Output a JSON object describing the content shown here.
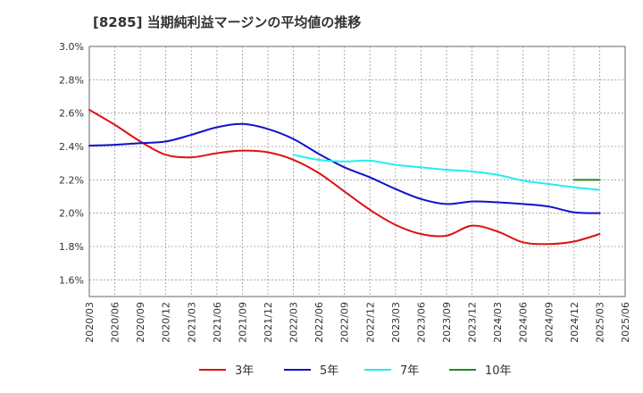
{
  "chart_data": {
    "type": "line",
    "title": "[8285]  当期純利益マージンの平均値の推移",
    "xlabel": "",
    "ylabel": "",
    "ylim": [
      1.5,
      3.0
    ],
    "y_ticks": [
      "1.6%",
      "1.8%",
      "2.0%",
      "2.2%",
      "2.4%",
      "2.6%",
      "2.8%",
      "3.0%"
    ],
    "y_tick_values": [
      1.6,
      1.8,
      2.0,
      2.2,
      2.4,
      2.6,
      2.8,
      3.0
    ],
    "x_ticks": [
      "2020/03",
      "2020/06",
      "2020/09",
      "2020/12",
      "2021/03",
      "2021/06",
      "2021/09",
      "2021/12",
      "2022/03",
      "2022/06",
      "2022/09",
      "2022/12",
      "2023/03",
      "2023/06",
      "2023/09",
      "2023/12",
      "2024/03",
      "2024/06",
      "2024/09",
      "2024/12",
      "2025/03",
      "2025/06"
    ],
    "grid": true,
    "legend_position": "bottom",
    "series": [
      {
        "name": "3年",
        "color": "#dd1111",
        "x": [
          "2020/03",
          "2020/06",
          "2020/09",
          "2020/12",
          "2021/03",
          "2021/06",
          "2021/09",
          "2021/12",
          "2022/03",
          "2022/06",
          "2022/09",
          "2022/12",
          "2023/03",
          "2023/06",
          "2023/09",
          "2023/12",
          "2024/03",
          "2024/06",
          "2024/09",
          "2024/12",
          "2025/03"
        ],
        "values": [
          2.62,
          2.53,
          2.43,
          2.35,
          2.335,
          2.36,
          2.375,
          2.365,
          2.32,
          2.24,
          2.13,
          2.02,
          1.93,
          1.875,
          1.865,
          1.925,
          1.89,
          1.825,
          1.815,
          1.83,
          1.875
        ]
      },
      {
        "name": "5年",
        "color": "#1111cc",
        "x": [
          "2020/03",
          "2020/06",
          "2020/09",
          "2020/12",
          "2021/03",
          "2021/06",
          "2021/09",
          "2021/12",
          "2022/03",
          "2022/06",
          "2022/09",
          "2022/12",
          "2023/03",
          "2023/06",
          "2023/09",
          "2023/12",
          "2024/03",
          "2024/06",
          "2024/09",
          "2024/12",
          "2025/03"
        ],
        "values": [
          2.405,
          2.41,
          2.42,
          2.43,
          2.47,
          2.515,
          2.535,
          2.505,
          2.445,
          2.355,
          2.275,
          2.215,
          2.145,
          2.085,
          2.055,
          2.07,
          2.065,
          2.055,
          2.04,
          2.005,
          2.0
        ]
      },
      {
        "name": "7年",
        "color": "#22eeee",
        "x": [
          "2022/03",
          "2022/06",
          "2022/09",
          "2022/12",
          "2023/03",
          "2023/06",
          "2023/09",
          "2023/12",
          "2024/03",
          "2024/06",
          "2024/09",
          "2024/12",
          "2025/03"
        ],
        "values": [
          2.35,
          2.32,
          2.31,
          2.315,
          2.29,
          2.275,
          2.26,
          2.25,
          2.23,
          2.195,
          2.175,
          2.155,
          2.14
        ]
      },
      {
        "name": "10年",
        "color": "#228822",
        "x": [
          "2024/12",
          "2025/03"
        ],
        "values": [
          2.2,
          2.2
        ]
      }
    ]
  }
}
